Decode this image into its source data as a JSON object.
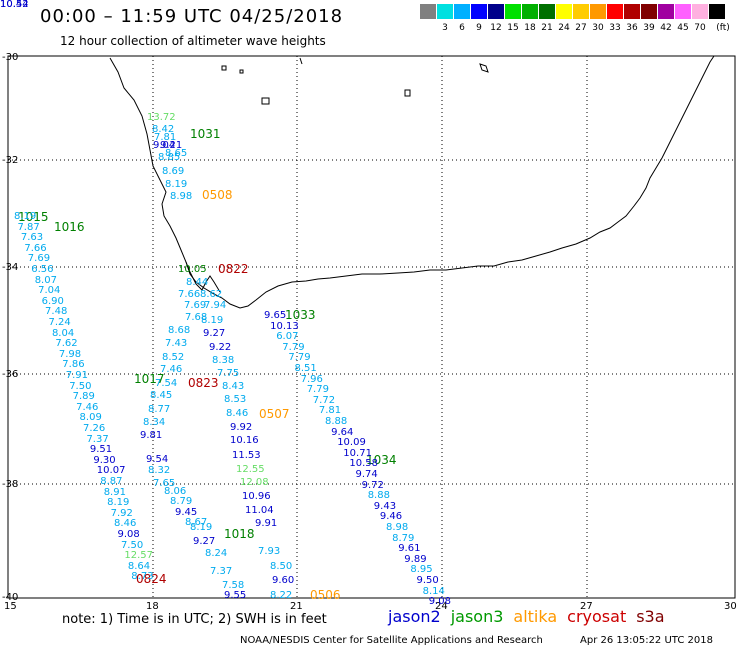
{
  "title": "00:00 – 11:59 UTC 04/25/2018",
  "subtitle": "12 hour collection of altimeter wave heights",
  "scale": {
    "unit": "(ft)",
    "bins": [
      {
        "label": "",
        "color": "#808080"
      },
      {
        "label": "3",
        "color": "#00e0e0"
      },
      {
        "label": "6",
        "color": "#00b0ff"
      },
      {
        "label": "9",
        "color": "#0000ff"
      },
      {
        "label": "12",
        "color": "#00008b"
      },
      {
        "label": "15",
        "color": "#00e000"
      },
      {
        "label": "18",
        "color": "#00b000"
      },
      {
        "label": "21",
        "color": "#007000"
      },
      {
        "label": "24",
        "color": "#ffff00"
      },
      {
        "label": "27",
        "color": "#ffcc00"
      },
      {
        "label": "30",
        "color": "#ff9900"
      },
      {
        "label": "33",
        "color": "#ff0000"
      },
      {
        "label": "36",
        "color": "#b00000"
      },
      {
        "label": "39",
        "color": "#800000"
      },
      {
        "label": "42",
        "color": "#a000a0"
      },
      {
        "label": "45",
        "color": "#ff60ff"
      },
      {
        "label": "70",
        "color": "#ffb0e0"
      },
      {
        "label": "",
        "color": "#000000"
      }
    ]
  },
  "axes": {
    "lat_labels": [
      "-30",
      "-32",
      "-34",
      "-36",
      "-38",
      "-40"
    ],
    "lon_labels": [
      "15",
      "18",
      "21",
      "24",
      "27",
      "30"
    ]
  },
  "passes": [
    {
      "label": "1031",
      "color": "#008000"
    },
    {
      "label": "0508",
      "color": "#ff9900"
    },
    {
      "label": "1015",
      "color": "#008000"
    },
    {
      "label": "1016",
      "color": "#008000"
    },
    {
      "label": "0822",
      "color": "#b00000"
    },
    {
      "label": "1033",
      "color": "#008000"
    },
    {
      "label": "1017",
      "color": "#008000"
    },
    {
      "label": "0823",
      "color": "#b00000"
    },
    {
      "label": "0507",
      "color": "#ff9900"
    },
    {
      "label": "1034",
      "color": "#008000"
    },
    {
      "label": "1018",
      "color": "#008000"
    },
    {
      "label": "0824",
      "color": "#b00000"
    },
    {
      "label": "0506",
      "color": "#ff9900"
    }
  ],
  "observations": [
    {
      "v": "13.72",
      "color": "#66dd66"
    },
    {
      "v": "8.42",
      "color": "#00aaee"
    },
    {
      "v": "7.81",
      "color": "#00aaee"
    },
    {
      "v": "9.04",
      "color": "#0000cc"
    },
    {
      "v": "9.21",
      "color": "#0000cc"
    },
    {
      "v": "8.65",
      "color": "#00aaee"
    },
    {
      "v": "8.85",
      "color": "#00aaee"
    },
    {
      "v": "8.69",
      "color": "#00aaee"
    },
    {
      "v": "8.19",
      "color": "#00aaee"
    },
    {
      "v": "8.98",
      "color": "#00aaee"
    },
    {
      "v": "8.19",
      "color": "#00aaee"
    },
    {
      "v": "7.87",
      "color": "#00aaee"
    },
    {
      "v": "7.63",
      "color": "#00aaee"
    },
    {
      "v": "7.66",
      "color": "#00aaee"
    },
    {
      "v": "7.69",
      "color": "#00aaee"
    },
    {
      "v": "6.56",
      "color": "#00aaee"
    },
    {
      "v": "8.07",
      "color": "#00aaee"
    },
    {
      "v": "7.04",
      "color": "#00aaee"
    },
    {
      "v": "6.90",
      "color": "#00aaee"
    },
    {
      "v": "7.48",
      "color": "#00aaee"
    },
    {
      "v": "7.24",
      "color": "#00aaee"
    },
    {
      "v": "8.04",
      "color": "#00aaee"
    },
    {
      "v": "7.62",
      "color": "#00aaee"
    },
    {
      "v": "7.98",
      "color": "#00aaee"
    },
    {
      "v": "7.86",
      "color": "#00aaee"
    },
    {
      "v": "7.91",
      "color": "#00aaee"
    },
    {
      "v": "7.50",
      "color": "#00aaee"
    },
    {
      "v": "7.89",
      "color": "#00aaee"
    },
    {
      "v": "7.46",
      "color": "#00aaee"
    },
    {
      "v": "8.09",
      "color": "#00aaee"
    },
    {
      "v": "7.26",
      "color": "#00aaee"
    },
    {
      "v": "7.37",
      "color": "#00aaee"
    },
    {
      "v": "9.51",
      "color": "#0000cc"
    },
    {
      "v": "9.30",
      "color": "#0000cc"
    },
    {
      "v": "10.07",
      "color": "#0000cc"
    },
    {
      "v": "8.87",
      "color": "#00aaee"
    },
    {
      "v": "8.91",
      "color": "#00aaee"
    },
    {
      "v": "8.19",
      "color": "#00aaee"
    },
    {
      "v": "7.92",
      "color": "#00aaee"
    },
    {
      "v": "8.46",
      "color": "#00aaee"
    },
    {
      "v": "9.08",
      "color": "#0000cc"
    },
    {
      "v": "7.50",
      "color": "#00aaee"
    },
    {
      "v": "12.57",
      "color": "#66dd66"
    },
    {
      "v": "8.64",
      "color": "#00aaee"
    },
    {
      "v": "8.73",
      "color": "#00aaee"
    },
    {
      "v": "10.05",
      "color": "#008000"
    },
    {
      "v": "8.44",
      "color": "#00aaee"
    },
    {
      "v": "7.66",
      "color": "#00aaee"
    },
    {
      "v": "8.62",
      "color": "#00aaee"
    },
    {
      "v": "7.69",
      "color": "#00aaee"
    },
    {
      "v": "7.94",
      "color": "#00aaee"
    },
    {
      "v": "7.68",
      "color": "#00aaee"
    },
    {
      "v": "8.19",
      "color": "#00aaee"
    },
    {
      "v": "8.68",
      "color": "#00aaee"
    },
    {
      "v": "9.27",
      "color": "#0000cc"
    },
    {
      "v": "7.43",
      "color": "#00aaee"
    },
    {
      "v": "9.22",
      "color": "#0000cc"
    },
    {
      "v": "8.52",
      "color": "#00aaee"
    },
    {
      "v": "8.38",
      "color": "#00aaee"
    },
    {
      "v": "7.46",
      "color": "#00aaee"
    },
    {
      "v": "7.75",
      "color": "#00aaee"
    },
    {
      "v": "7.54",
      "color": "#00aaee"
    },
    {
      "v": "8.43",
      "color": "#00aaee"
    },
    {
      "v": "8.45",
      "color": "#00aaee"
    },
    {
      "v": "8.53",
      "color": "#00aaee"
    },
    {
      "v": "8.77",
      "color": "#00aaee"
    },
    {
      "v": "8.46",
      "color": "#00aaee"
    },
    {
      "v": "8.34",
      "color": "#00aaee"
    },
    {
      "v": "9.92",
      "color": "#0000cc"
    },
    {
      "v": "9.81",
      "color": "#0000cc"
    },
    {
      "v": "10.16",
      "color": "#0000cc"
    },
    {
      "v": "9.54",
      "color": "#0000cc"
    },
    {
      "v": "11.53",
      "color": "#0000cc"
    },
    {
      "v": "8.32",
      "color": "#00aaee"
    },
    {
      "v": "12.55",
      "color": "#66dd66"
    },
    {
      "v": "7.65",
      "color": "#00aaee"
    },
    {
      "v": "12.08",
      "color": "#66dd66"
    },
    {
      "v": "8.06",
      "color": "#00aaee"
    },
    {
      "v": "10.96",
      "color": "#0000cc"
    },
    {
      "v": "8.79",
      "color": "#00aaee"
    },
    {
      "v": "11.04",
      "color": "#0000cc"
    },
    {
      "v": "9.45",
      "color": "#0000cc"
    },
    {
      "v": "8.67",
      "color": "#00aaee"
    },
    {
      "v": "9.91",
      "color": "#0000cc"
    },
    {
      "v": "8.19",
      "color": "#00aaee"
    },
    {
      "v": "9.27",
      "color": "#0000cc"
    },
    {
      "v": "7.93",
      "color": "#00aaee"
    },
    {
      "v": "8.24",
      "color": "#00aaee"
    },
    {
      "v": "8.50",
      "color": "#00aaee"
    },
    {
      "v": "7.37",
      "color": "#00aaee"
    },
    {
      "v": "9.60",
      "color": "#0000cc"
    },
    {
      "v": "7.58",
      "color": "#00aaee"
    },
    {
      "v": "9.55",
      "color": "#0000cc"
    },
    {
      "v": "8.22",
      "color": "#00aaee"
    },
    {
      "v": "9.65",
      "color": "#0000cc"
    },
    {
      "v": "10.13",
      "color": "#0000cc"
    },
    {
      "v": "6.07",
      "color": "#00aaee"
    },
    {
      "v": "7.79",
      "color": "#00aaee"
    },
    {
      "v": "7.79",
      "color": "#00aaee"
    },
    {
      "v": "8.51",
      "color": "#00aaee"
    },
    {
      "v": "7.96",
      "color": "#00aaee"
    },
    {
      "v": "7.79",
      "color": "#00aaee"
    },
    {
      "v": "7.72",
      "color": "#00aaee"
    },
    {
      "v": "7.81",
      "color": "#00aaee"
    },
    {
      "v": "8.88",
      "color": "#00aaee"
    },
    {
      "v": "9.64",
      "color": "#0000cc"
    },
    {
      "v": "10.09",
      "color": "#0000cc"
    },
    {
      "v": "10.71",
      "color": "#0000cc"
    },
    {
      "v": "10.58",
      "color": "#0000cc"
    },
    {
      "v": "9.74",
      "color": "#0000cc"
    },
    {
      "v": "9.72",
      "color": "#0000cc"
    },
    {
      "v": "8.88",
      "color": "#00aaee"
    },
    {
      "v": "9.43",
      "color": "#0000cc"
    },
    {
      "v": "9.46",
      "color": "#0000cc"
    },
    {
      "v": "8.98",
      "color": "#00aaee"
    },
    {
      "v": "8.79",
      "color": "#00aaee"
    },
    {
      "v": "9.61",
      "color": "#0000cc"
    },
    {
      "v": "9.89",
      "color": "#0000cc"
    },
    {
      "v": "8.95",
      "color": "#00aaee"
    },
    {
      "v": "9.50",
      "color": "#0000cc"
    },
    {
      "v": "8.14",
      "color": "#00aaee"
    },
    {
      "v": "9.08",
      "color": "#0000cc"
    },
    {
      "v": "10.52",
      "color": "#0000cc"
    },
    {
      "v": "10.44",
      "color": "#0000cc"
    }
  ],
  "note": "note: 1) Time is in UTC; 2) SWH is in feet",
  "satellites": [
    {
      "name": "jason2",
      "color": "#0000cc"
    },
    {
      "name": "jason3",
      "color": "#009900"
    },
    {
      "name": "altika",
      "color": "#ff9900"
    },
    {
      "name": "cryosat",
      "color": "#cc0000"
    },
    {
      "name": "s3a",
      "color": "#800000"
    }
  ],
  "credit": "NOAA/NESDIS Center for Satellite Applications and Research",
  "timestamp": "Apr 26 13:05:22 UTC 2018"
}
